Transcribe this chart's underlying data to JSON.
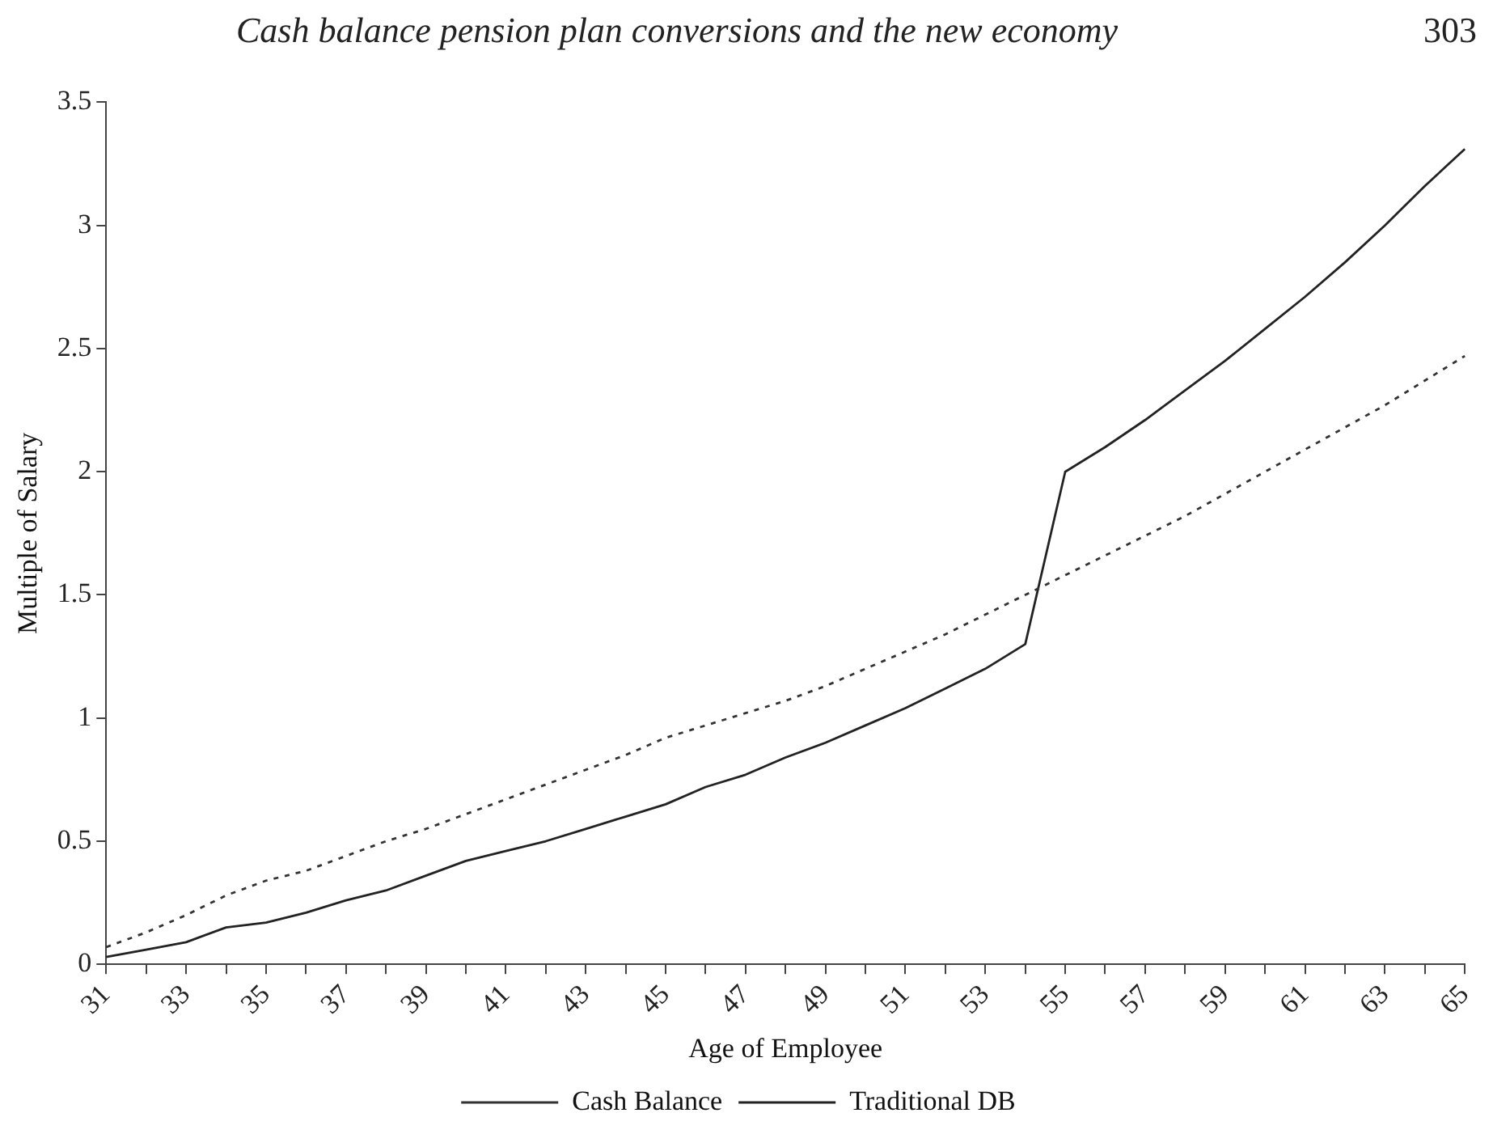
{
  "chart_data": {
    "type": "line",
    "xlabel": "Age of Employee",
    "ylabel": "Multiple of Salary",
    "annotations": [
      "Cash balance pension plan conversions and the new economy",
      "303"
    ],
    "categories": [
      "31",
      null,
      "33",
      null,
      "35",
      null,
      "37",
      null,
      "39",
      null,
      "41",
      null,
      "43",
      null,
      "45",
      null,
      "47",
      null,
      "49",
      null,
      "51",
      null,
      "53",
      null,
      "55",
      null,
      "57",
      null,
      "59",
      null,
      "61",
      null,
      "63",
      null,
      "65"
    ],
    "series": [
      {
        "name": "Cash Balance",
        "color": "#333333",
        "line_style": "dotted",
        "values": [
          0.07,
          0.13,
          0.2,
          0.28,
          0.34,
          0.38,
          0.44,
          0.5,
          0.55,
          0.61,
          0.67,
          0.73,
          0.79,
          0.85,
          0.92,
          0.97,
          1.02,
          1.07,
          1.13,
          1.2,
          1.27,
          1.34,
          1.42,
          1.5,
          1.58,
          1.66,
          1.74,
          1.82,
          1.91,
          2.0,
          2.09,
          2.18,
          2.27,
          2.37,
          2.47
        ]
      },
      {
        "name": "Traditional DB",
        "color": "#222222",
        "line_style": "solid",
        "values": [
          0.03,
          0.06,
          0.09,
          0.15,
          0.17,
          0.21,
          0.26,
          0.3,
          0.36,
          0.42,
          0.46,
          0.5,
          0.55,
          0.6,
          0.65,
          0.72,
          0.77,
          0.84,
          0.9,
          0.97,
          1.04,
          1.12,
          1.2,
          1.3,
          2.0,
          2.1,
          2.21,
          2.33,
          2.45,
          2.58,
          2.71,
          2.85,
          3.0,
          3.16,
          3.31
        ]
      }
    ],
    "ylim": [
      0,
      3.5
    ],
    "yticks": [
      0,
      0.5,
      1,
      1.5,
      2,
      2.5,
      3,
      3.5
    ],
    "legend": "bottom",
    "marker": "none"
  }
}
